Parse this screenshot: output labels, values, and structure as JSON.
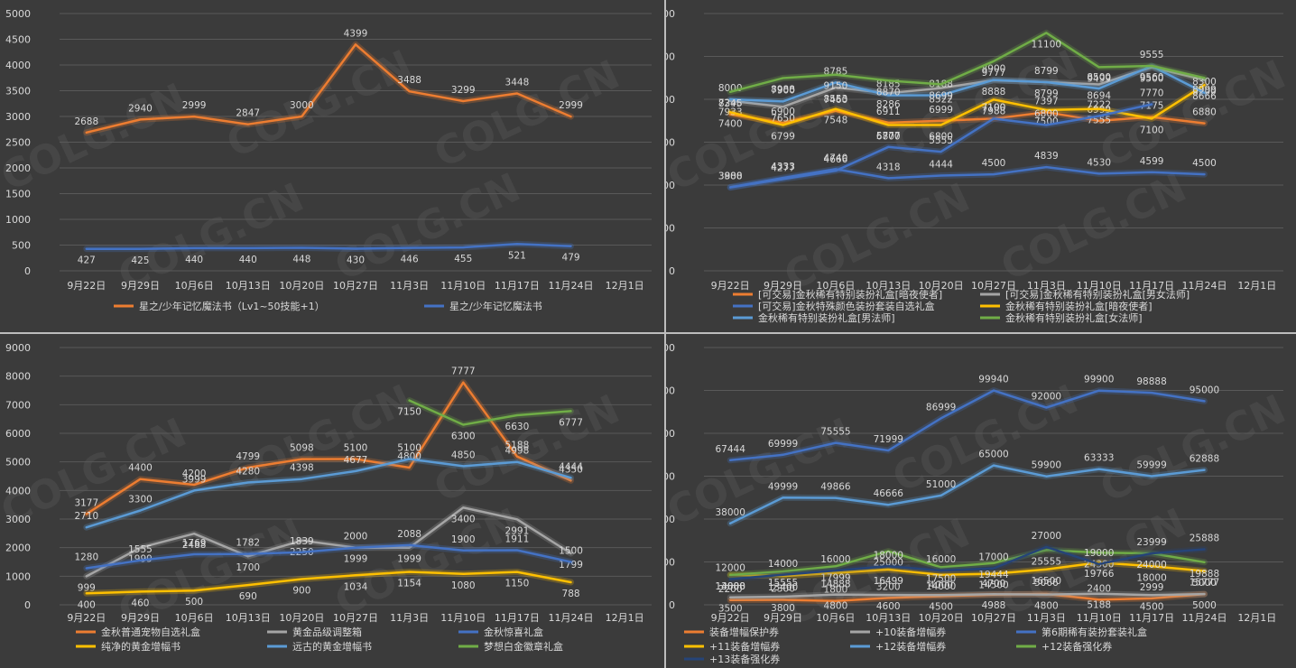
{
  "chart_data": [
    {
      "type": "line",
      "categories": [
        "9月22日",
        "9月29日",
        "10月6日",
        "10月13日",
        "10月20日",
        "10月27日",
        "11月3日",
        "11月10日",
        "11月17日",
        "11月24日",
        "12月1日"
      ],
      "ylim": [
        0,
        5000
      ],
      "yticks": [
        0,
        500,
        1000,
        1500,
        2000,
        2500,
        3000,
        3500,
        4000,
        4500,
        5000
      ],
      "legend_position": "bottom",
      "series": [
        {
          "name": "星之/少年记忆魔法书（Lv1~50技能+1）",
          "color": "#ed7d31",
          "values": [
            2688,
            2940,
            2999,
            2847,
            3000,
            4399,
            3488,
            3299,
            3448,
            2999,
            null
          ]
        },
        {
          "name": "星之/少年记忆魔法书",
          "color": "#4472c4",
          "values": [
            427,
            425,
            440,
            440,
            448,
            430,
            446,
            455,
            521,
            479,
            null
          ]
        }
      ]
    },
    {
      "type": "line",
      "categories": [
        "9月22日",
        "9月29日",
        "10月6日",
        "10月13日",
        "10月20日",
        "10月27日",
        "11月3日",
        "11月10日",
        "11月17日",
        "11月24日",
        "12月1日"
      ],
      "ylim": [
        0,
        12000
      ],
      "yticks": [
        0,
        2000,
        4000,
        6000,
        8000,
        10000,
        12000
      ],
      "legend_position": "bottom",
      "series": [
        {
          "name": "[可交易]金秋稀有特别装扮礼盒[暗夜使者]",
          "color": "#ed7d31",
          "values": [
            7298,
            6900,
            7460,
            6911,
            6999,
            7100,
            7397,
            6999,
            7175,
            6880,
            null
          ]
        },
        {
          "name": "[可交易]金秋稀有特别装扮礼盒[男女法师]",
          "color": "#a5a5a5",
          "values": [
            7933,
            7650,
            8553,
            8286,
            8522,
            8888,
            8799,
            8694,
            9500,
            8900,
            null
          ]
        },
        {
          "name": "[可交易]金秋特殊颜色装扮套装自选礼盒",
          "color": "#4472c4",
          "values": [
            3900,
            4333,
            4740,
            4318,
            4444,
            4500,
            4839,
            4530,
            4599,
            4500,
            null
          ]
        },
        {
          "name": "金秋稀有特别装扮礼盒[暗夜使者]",
          "color": "#ffc000",
          "values": [
            7400,
            6799,
            7548,
            6800,
            6800,
            7988,
            7500,
            7555,
            7100,
            8666,
            null
          ]
        },
        {
          "name": "金秋稀有特别装扮礼盒[男法师]",
          "color": "#5b9bd5",
          "values": [
            8000,
            7900,
            8785,
            8185,
            8188,
            8900,
            8799,
            8500,
            9555,
            8300,
            null
          ]
        },
        {
          "name": "金秋稀有特别装扮礼盒[女法师]",
          "color": "#70ad47",
          "values": [
            8345,
            8988,
            9150,
            8870,
            8699,
            9777,
            11100,
            9499,
            9560,
            8999,
            null
          ]
        },
        {
          "name": "_hidden_blue2",
          "color": "#4472c4",
          "hidden_legend": true,
          "values": [
            3888,
            4277,
            4666,
            5777,
            5555,
            7100,
            6800,
            7222,
            7770,
            null,
            null
          ]
        }
      ]
    },
    {
      "type": "line",
      "categories": [
        "9月22日",
        "9月29日",
        "10月6日",
        "10月13日",
        "10月20日",
        "10月27日",
        "11月3日",
        "11月10日",
        "11月17日",
        "11月24日",
        "12月1日"
      ],
      "ylim": [
        0,
        9000
      ],
      "yticks": [
        0,
        1000,
        2000,
        3000,
        4000,
        5000,
        6000,
        7000,
        8000,
        9000
      ],
      "legend_position": "bottom",
      "series": [
        {
          "name": "金秋普通宠物自选礼盒",
          "color": "#ed7d31",
          "values": [
            3177,
            4400,
            4200,
            4799,
            5098,
            5100,
            4800,
            7777,
            5188,
            4350,
            null
          ]
        },
        {
          "name": "黄金品级调整箱",
          "color": "#a5a5a5",
          "values": [
            999,
            1999,
            2488,
            1700,
            2250,
            1999,
            1999,
            3400,
            2991,
            1799,
            null
          ]
        },
        {
          "name": "金秋惊喜礼盒",
          "color": "#4472c4",
          "values": [
            1280,
            1555,
            1769,
            1782,
            1839,
            2000,
            2088,
            1900,
            1911,
            1500,
            null
          ]
        },
        {
          "name": "纯净的黄金增幅书",
          "color": "#ffc000",
          "values": [
            400,
            460,
            500,
            690,
            900,
            1034,
            1154,
            1080,
            1150,
            788,
            null
          ]
        },
        {
          "name": "远古的黄金增幅书",
          "color": "#5b9bd5",
          "values": [
            2710,
            3300,
            3999,
            4280,
            4398,
            4677,
            5100,
            4850,
            4998,
            4444,
            null
          ]
        },
        {
          "name": "梦想白金徽章礼盒",
          "color": "#70ad47",
          "values": [
            null,
            null,
            null,
            null,
            null,
            null,
            7150,
            6300,
            6630,
            6777,
            null
          ]
        }
      ]
    },
    {
      "type": "line",
      "categories": [
        "9月22日",
        "9月29日",
        "10月6日",
        "10月13日",
        "10月20日",
        "10月27日",
        "11月3日",
        "11月10日",
        "11月17日",
        "11月24日",
        "12月1日"
      ],
      "ylim": [
        0,
        120000
      ],
      "yticks": [
        0,
        20000,
        40000,
        60000,
        80000,
        100000,
        120000
      ],
      "legend_position": "bottom",
      "series": [
        {
          "name": "装备增幅保护券",
          "color": "#ed7d31",
          "values": [
            2200,
            2300,
            1800,
            3200,
            4000,
            4700,
            5066,
            2400,
            2999,
            5000,
            null
          ]
        },
        {
          "name": "+10装备增幅券",
          "color": "#a5a5a5",
          "values": [
            3500,
            3800,
            4800,
            4600,
            4500,
            4988,
            4800,
            5188,
            4500,
            5000,
            null
          ]
        },
        {
          "name": "第6期稀有装扮套装礼盒",
          "color": "#4472c4",
          "values": [
            67444,
            69999,
            75555,
            71999,
            86999,
            99940,
            92000,
            99900,
            98888,
            95000,
            null
          ]
        },
        {
          "name": "+11装备增幅券",
          "color": "#ffc000",
          "values": [
            14000,
            13400,
            14888,
            16499,
            14000,
            14500,
            16500,
            19766,
            18000,
            15777,
            null
          ]
        },
        {
          "name": "+12装备增幅券",
          "color": "#5b9bd5",
          "values": [
            38000,
            49999,
            49866,
            46666,
            51000,
            65000,
            59900,
            63333,
            59999,
            62888,
            null
          ]
        },
        {
          "name": "+12装备强化券",
          "color": "#70ad47",
          "values": [
            13888,
            15555,
            17999,
            25000,
            17500,
            19444,
            25555,
            24300,
            24000,
            19888,
            null
          ]
        },
        {
          "name": "+13装备强化券",
          "color": "#264478",
          "values": [
            12000,
            14000,
            16000,
            18000,
            16000,
            17000,
            27000,
            19000,
            23999,
            25888,
            null
          ]
        }
      ]
    }
  ],
  "watermark": "COLG.CN"
}
